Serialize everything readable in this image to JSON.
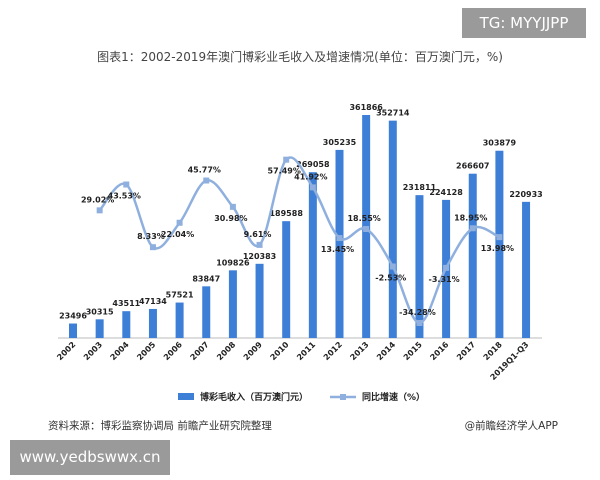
{
  "watermark_tg": "TG: MYYJJPP",
  "watermark_site": "www.yedbswwx.cn",
  "source": "资料来源：博彩监察协调局 前瞻产业研究院整理",
  "brand": "@前瞻经济学人APP",
  "chart_data": {
    "type": "bar+line",
    "title": "图表1：2002-2019年澳门博彩业毛收入及增速情况(单位：百万澳门元，%)",
    "categories": [
      "2002",
      "2003",
      "2004",
      "2005",
      "2006",
      "2007",
      "2008",
      "2009",
      "2010",
      "2011",
      "2012",
      "2013",
      "2014",
      "2015",
      "2016",
      "2017",
      "2018",
      "2019Q1-Q3"
    ],
    "series": [
      {
        "name": "博彩毛收入（百万澳门元）",
        "type": "bar",
        "color": "#3d7fd6",
        "values": [
          23496,
          30315,
          43511,
          47134,
          57521,
          83847,
          109826,
          120383,
          189588,
          269058,
          305235,
          361866,
          352714,
          231811,
          224128,
          266607,
          303879,
          220933
        ],
        "labels": [
          "23496",
          "30315",
          "43511",
          "47134",
          "57521",
          "83847",
          "109826",
          "120383",
          "189588",
          "269058",
          "305235",
          "361866",
          "352714",
          "231811",
          "224128",
          "266607",
          "303879",
          "220933"
        ]
      },
      {
        "name": "同比增速（%）",
        "type": "line",
        "color": "#8fb0de",
        "values": [
          null,
          29.02,
          43.53,
          8.33,
          22.04,
          45.77,
          30.98,
          9.61,
          57.49,
          41.92,
          13.45,
          18.55,
          -2.53,
          -34.28,
          -3.31,
          18.95,
          13.98,
          null
        ],
        "labels": [
          "",
          "29.02%",
          "43.53%",
          "8.33%",
          "22.04%",
          "45.77%",
          "30.98%",
          "9.61%",
          "57.49%",
          "41.92%",
          "13.45%",
          "18.55%",
          "-2.53%",
          "-34.28%",
          "-3.31%",
          "18.95%",
          "13.98%",
          ""
        ]
      }
    ],
    "legend_position": "bottom",
    "grid": false
  }
}
